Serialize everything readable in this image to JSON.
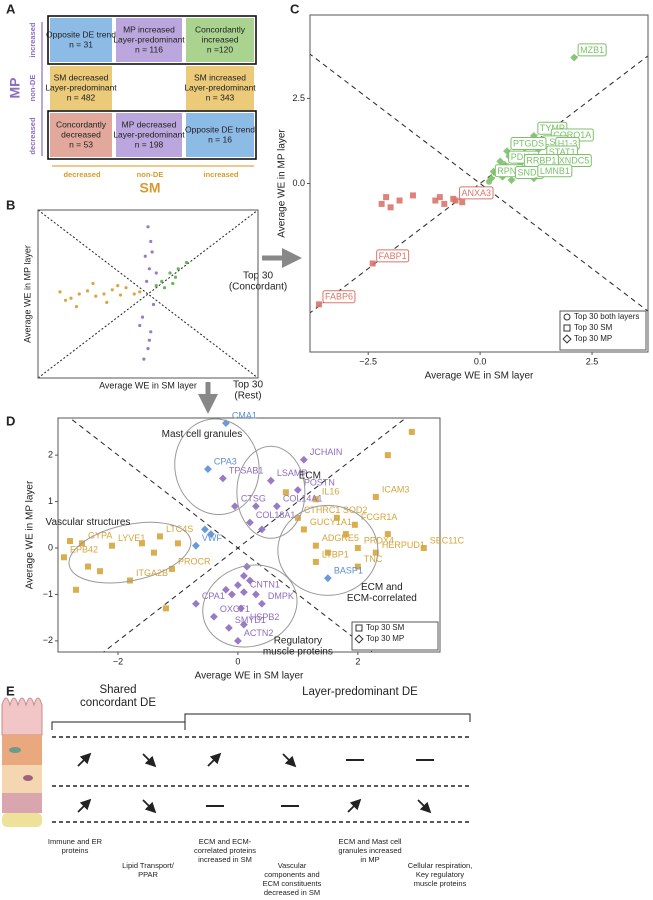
{
  "panel_labels": [
    "A",
    "B",
    "C",
    "D",
    "E"
  ],
  "panel_a": {
    "y_axis": {
      "title": "MP",
      "labels": [
        "increased",
        "non-DE",
        "decreased"
      ]
    },
    "x_axis": {
      "title": "SM",
      "labels": [
        "decreased",
        "non-DE",
        "increased"
      ]
    },
    "cells": [
      [
        {
          "lines": [
            "Opposite DE trend",
            "n = 31"
          ],
          "color": "#8cbbe6"
        },
        {
          "lines": [
            "MP increased",
            "Layer-predominant",
            "n = 116"
          ],
          "color": "#bba7de"
        },
        {
          "lines": [
            "Concordantly",
            "increased",
            "n =120"
          ],
          "color": "#a9d38f"
        }
      ],
      [
        {
          "lines": [
            "SM decreased",
            "Layer-predominant",
            "n = 482"
          ],
          "color": "#ebcb7a"
        },
        null,
        {
          "lines": [
            "SM increased",
            "Layer-predominant",
            "n = 343"
          ],
          "color": "#ebcb7a"
        }
      ],
      [
        {
          "lines": [
            "Concordantly",
            "decreased",
            "n = 53"
          ],
          "color": "#e3a89c"
        },
        {
          "lines": [
            "MP decreased",
            "Layer-predominant",
            "n = 198"
          ],
          "color": "#bba7de"
        },
        {
          "lines": [
            "Opposite DE trend",
            "n = 16"
          ],
          "color": "#8cbbe6"
        }
      ]
    ]
  },
  "arrows": [
    {
      "lines": [
        "Top 30",
        "(Concordant)"
      ]
    },
    {
      "lines": [
        "Top 30",
        "(Rest)"
      ]
    }
  ],
  "chart_data": [
    {
      "type": "scatter",
      "x_label": "Average WE in SM layer",
      "y_label": "Average WE in MP layer",
      "xlim": [
        -4,
        4
      ],
      "ylim": [
        -4,
        4
      ],
      "diagonals": "dotted",
      "series": [
        {
          "color": "#d99a2b",
          "marker": "circle",
          "x": [
            -3.2,
            -2.8,
            -2.5,
            -2.2,
            -1.9,
            -1.6,
            -1.3,
            -1.0,
            -0.8,
            -0.5,
            -2.0,
            -1.5,
            -3.0,
            -0.3,
            -2.6,
            -1.1
          ],
          "y": [
            0.1,
            -0.2,
            0,
            0.15,
            -0.1,
            0,
            0.2,
            -0.05,
            0.3,
            0,
            0.5,
            -0.4,
            -0.3,
            0.1,
            -0.6,
            0.4
          ]
        },
        {
          "color": "#8e6cc0",
          "marker": "circle",
          "x": [
            0,
            0.1,
            -0.1,
            0.05,
            -0.05,
            0.2,
            -0.2,
            0.1,
            0,
            -0.15,
            0.15,
            0.3,
            -0.3,
            0.05
          ],
          "y": [
            3.2,
            2.5,
            1.8,
            1.2,
            0.6,
            -0.5,
            -1.1,
            -1.8,
            -2.6,
            -3.1,
            2.0,
            1.0,
            -1.5,
            -2.2
          ]
        },
        {
          "color": "#5aaa4c",
          "marker": "circle",
          "x": [
            0.5,
            0.8,
            1.1,
            0.6,
            1.4,
            0.9,
            0.3,
            1.0
          ],
          "y": [
            0.6,
            1.0,
            1.2,
            0.3,
            1.5,
            0.5,
            0.4,
            0.8
          ]
        }
      ]
    },
    {
      "type": "scatter",
      "x_label": "Average WE in SM layer",
      "y_label": "Average WE in MP layer",
      "xlim": [
        -3.8,
        3.75
      ],
      "ylim": [
        -4.95,
        4.95
      ],
      "diagonals": "dashed",
      "label_boxes": true,
      "xticks": [
        {
          "value": -2.5,
          "label": "−2.5"
        },
        {
          "value": 0,
          "label": "0.0"
        },
        2.5
      ],
      "yticks": [
        {
          "value": 0,
          "label": "0.0"
        },
        2.5
      ],
      "legend": [
        {
          "label": "Top 30 both layers",
          "marker": "circle"
        },
        {
          "label": "Top 30 SM",
          "marker": "square"
        },
        {
          "label": "Top 30 MP",
          "marker": "diamond"
        }
      ],
      "series": [
        {
          "color": "#7cc06a",
          "marker": "diamond",
          "x": [
            2.1,
            1.2,
            1.5,
            1.3,
            1.6,
            0.6,
            1.4,
            0.55,
            1.5,
            0.9,
            0.25,
            0.7,
            1.2,
            0.4,
            0.8,
            1.0,
            0.7,
            0.9,
            1.1,
            0.5,
            1.0,
            0.3,
            0.65,
            1.15,
            0.85,
            0.45
          ],
          "y": [
            3.7,
            1.4,
            1.2,
            1.0,
            0.95,
            0.95,
            0.7,
            0.55,
            0.45,
            0.45,
            0.15,
            0.1,
            0.15,
            0.4,
            0.7,
            0.9,
            0.3,
            0.6,
            0.5,
            0.2,
            1.1,
            0.35,
            0.8,
            0.75,
            0.25,
            0.65
          ],
          "labels": [
            "MZB1",
            "TYMP",
            "CORO1A",
            "LSP1",
            "H1-3",
            "PTGDS",
            "STAT1",
            "PDIA6",
            "TXNDC5",
            "RRBP1",
            "RPN1",
            "SND1",
            "LMNB1",
            null,
            null,
            null,
            null,
            null,
            null,
            null,
            null,
            null,
            null,
            null,
            null,
            null
          ]
        },
        {
          "color": "#d9756b",
          "marker": "square",
          "x": [
            -2.4,
            -3.6,
            -0.55,
            -2.1,
            -2.2,
            -1.8,
            -1.5,
            -1.0,
            -0.8,
            -0.6,
            -0.4,
            -0.2,
            -2.0,
            -0.9
          ],
          "y": [
            -2.35,
            -3.55,
            -0.5,
            -0.4,
            -0.6,
            -0.5,
            -0.35,
            -0.5,
            -0.6,
            -0.45,
            -0.55,
            -0.3,
            -0.7,
            -0.4
          ],
          "labels": [
            "FABP1",
            "FABP6",
            "ANXA3",
            null,
            null,
            null,
            null,
            null,
            null,
            null,
            null,
            null,
            null,
            null
          ]
        },
        {
          "color": "#7cc06a",
          "marker": "circle",
          "x": [
            0.35,
            0.2
          ],
          "y": [
            0.3,
            0.05
          ]
        }
      ]
    },
    {
      "type": "scatter",
      "x_label": "Average WE in SM layer",
      "y_label": "Average WE in MP layer",
      "xlim": [
        -3,
        3.37
      ],
      "ylim": [
        -2.24,
        2.8
      ],
      "diagonals": "dashed",
      "xticks": [
        {
          "value": -2,
          "label": "−2"
        },
        0,
        2
      ],
      "yticks": [
        {
          "value": -2,
          "label": "−2"
        },
        {
          "value": -1,
          "label": "−1"
        },
        0,
        1,
        2
      ],
      "legend": [
        {
          "label": "Top 30 SM",
          "marker": "square"
        },
        {
          "label": "Top 30 MP",
          "marker": "diamond"
        }
      ],
      "annotations": [
        [
          "Mast cell granules"
        ],
        [
          "ECM"
        ],
        [
          "Vascular structures"
        ],
        [
          "ECM and",
          "ECM-correlated"
        ],
        [
          "Regulatory",
          "muscle proteins"
        ]
      ],
      "series": [
        {
          "color": "#8e6cc0",
          "marker": "diamond",
          "x": [
            1.1,
            0.55,
            1.0,
            -0.25,
            -0.05,
            0.65,
            0.2,
            -0.7,
            -0.4,
            -0.15,
            0,
            0.1,
            0.4,
            0.1,
            0.1,
            0,
            -0.1,
            0.2,
            0.3,
            -0.2,
            0.05,
            0.15,
            0.4,
            0.3
          ],
          "y": [
            1.9,
            1.45,
            1.25,
            1.5,
            0.9,
            0.9,
            0.55,
            -1.2,
            -1.48,
            -1.72,
            -2.0,
            -1.65,
            -1.2,
            -0.95,
            -0.6,
            -0.8,
            -1.0,
            -0.7,
            -1.0,
            -0.9,
            -1.3,
            -0.4,
            0.4,
            0.9
          ],
          "labels": [
            "JCHAIN",
            "LSAMP",
            "POSTN",
            "TPSAB1",
            "CTSG",
            "COL14A1",
            "COL18A1",
            "CPA1",
            "OXCT1",
            "SMYD1",
            "ACTN2",
            "HSPB2",
            "DMPK",
            "CNTN1",
            null,
            null,
            null,
            null,
            null,
            null,
            null,
            null,
            null,
            null
          ]
        },
        {
          "color": "#d6a43a",
          "marker": "square",
          "x": [
            -2.1,
            -2.6,
            -2.9,
            -1.8,
            -1.3,
            -1.1,
            1.3,
            2.3,
            1.0,
            1.65,
            1.95,
            1.1,
            2.0,
            1.3,
            2.3,
            1.3,
            2.0,
            3.1,
            -2.5,
            -2.8,
            -1.6,
            -1.4,
            -2.3,
            -1.0,
            2.9,
            2.5,
            0.8,
            1.8,
            2.5,
            -2.7,
            1.5,
            -1.2
          ],
          "y": [
            0.05,
            0.1,
            -0.2,
            -0.7,
            0.25,
            -0.45,
            1.05,
            1.1,
            0.65,
            0.65,
            0.5,
            0.4,
            0.0,
            0.05,
            -0.1,
            -0.3,
            -0.4,
            0.0,
            -0.4,
            0.15,
            0.1,
            -0.1,
            -0.5,
            0.1,
            2.5,
            2.0,
            1.2,
            0.3,
            0.3,
            -0.9,
            -0.1,
            -1.3
          ],
          "labels": [
            "LYVE1",
            "GYPA",
            "EPB42",
            "ITGA2B",
            "LTC4S",
            "PROCR",
            "IL16",
            "ICAM3",
            "CTHRC1",
            "SOD2",
            "FCGR1A",
            "GUCY1A1",
            "PRDX4",
            "ADGRE5",
            "HERPUD1",
            "LTBP1",
            "TNC",
            "SEC11C",
            null,
            null,
            null,
            null,
            null,
            null,
            null,
            null,
            null,
            null,
            null,
            null,
            null,
            null
          ]
        },
        {
          "color": "#5b8fd4",
          "marker": "diamond",
          "x": [
            -0.2,
            -0.5,
            -0.7,
            1.5,
            -0.55,
            -0.45
          ],
          "y": [
            2.69,
            1.7,
            0.05,
            -0.65,
            0.4,
            0.3
          ],
          "labels": [
            "CMA1",
            "CPA3",
            "VWF",
            "BASP1",
            null,
            null
          ]
        }
      ]
    }
  ],
  "panel_e": {
    "headers": [
      [
        "Shared",
        "concordant DE"
      ],
      [
        "Layer-predominant DE"
      ]
    ],
    "captions": [
      [
        "Immune and ER",
        "proteins"
      ],
      [
        "Lipid Transport/",
        "PPAR"
      ],
      [
        "ECM and ECM-",
        "correlated proteins",
        "increased in SM"
      ],
      [
        "Vascular",
        "components and",
        "ECM constituents",
        "decreased in SM"
      ],
      [
        "ECM and Mast cell",
        "granules increased",
        "in MP"
      ],
      [
        "Cellular respiration,",
        "Key regulatory",
        "muscle proteins"
      ]
    ]
  }
}
